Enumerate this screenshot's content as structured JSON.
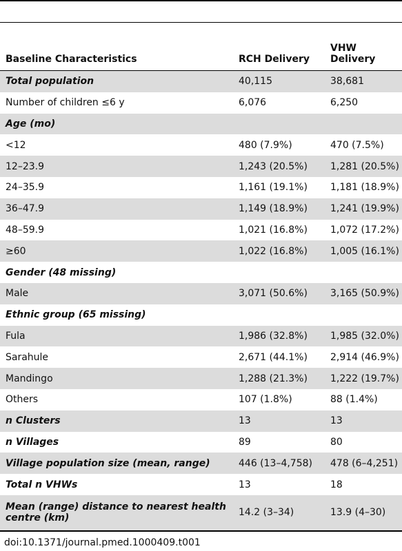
{
  "table": {
    "header": [
      "Baseline Characteristics",
      "RCH Delivery",
      "VHW Delivery"
    ],
    "rows": [
      [
        "Total population",
        "40,115",
        "38,681"
      ],
      [
        "Number of children ≤6 y",
        "6,076",
        "6,250"
      ],
      [
        "Age (mo)"
      ],
      [
        "<12",
        "480 (7.9%)",
        "470 (7.5%)"
      ],
      [
        "12–23.9",
        "1,243 (20.5%)",
        "1,281 (20.5%)"
      ],
      [
        "24–35.9",
        "1,161 (19.1%)",
        "1,181 (18.9%)"
      ],
      [
        "36–47.9",
        "1,149 (18.9%)",
        "1,241 (19.9%)"
      ],
      [
        "48–59.9",
        "1,021 (16.8%)",
        "1,072 (17.2%)"
      ],
      [
        "≥60",
        "1,022 (16.8%)",
        "1,005 (16.1%)"
      ],
      [
        "Gender (48 missing)"
      ],
      [
        "Male",
        "3,071 (50.6%)",
        "3,165 (50.9%)"
      ],
      [
        "Ethnic group (65 missing)"
      ],
      [
        "Fula",
        "1,986 (32.8%)",
        "1,985 (32.0%)"
      ],
      [
        "Sarahule",
        "2,671 (44.1%)",
        "2,914 (46.9%)"
      ],
      [
        "Mandingo",
        "1,288 (21.3%)",
        "1,222 (19.7%)"
      ],
      [
        "Others",
        "107 (1.8%)",
        "88 (1.4%)"
      ],
      [
        "n Clusters",
        "13",
        "13"
      ],
      [
        "n Villages",
        "89",
        "80"
      ],
      [
        "Village population size (mean, range)",
        "446 (13–4,758)",
        "478 (6–4,251)"
      ],
      [
        "Total n VHWs",
        "13",
        "18"
      ],
      [
        "Mean (range) distance to nearest health centre (km)",
        "14.2 (3–34)",
        "13.9 (4–30)"
      ]
    ]
  },
  "footer": "doi:10.1371/journal.pmed.1000409.t001"
}
